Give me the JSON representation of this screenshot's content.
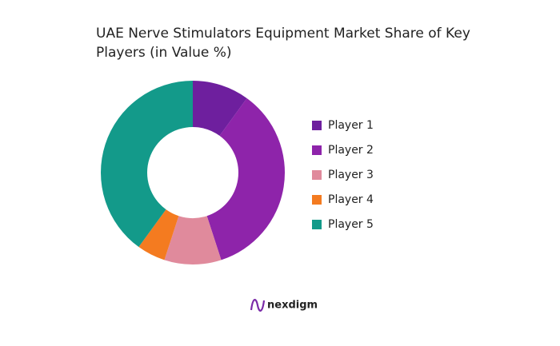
{
  "chart_data": {
    "type": "pie",
    "title": "UAE Nerve Stimulators Equipment Market Share of Key Players (in Value %)",
    "categories": [
      "Player 1",
      "Player 2",
      "Player 3",
      "Player 4",
      "Player 5"
    ],
    "values": [
      10,
      35,
      10,
      5,
      40
    ],
    "colors": [
      "#6e1f9e",
      "#8e24aa",
      "#e08a9c",
      "#f47b20",
      "#139a8a"
    ],
    "legend": "right"
  },
  "brand": "nexdigm"
}
